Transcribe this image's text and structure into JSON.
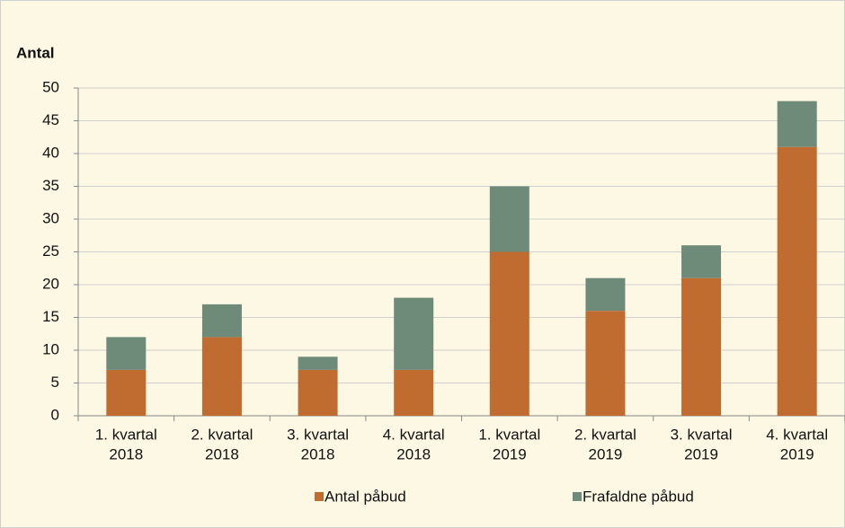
{
  "chart_data": {
    "type": "stacked_bar",
    "y_axis_label": "Antal",
    "categories": [
      [
        "1. kvartal",
        "2018"
      ],
      [
        "2. kvartal",
        "2018"
      ],
      [
        "3. kvartal",
        "2018"
      ],
      [
        "4. kvartal",
        "2018"
      ],
      [
        "1. kvartal",
        "2019"
      ],
      [
        "2. kvartal",
        "2019"
      ],
      [
        "3. kvartal",
        "2019"
      ],
      [
        "4. kvartal",
        "2019"
      ]
    ],
    "series": [
      {
        "name": "Antal påbud",
        "color": "#c06b30",
        "values": [
          7,
          12,
          7,
          7,
          25,
          16,
          21,
          41
        ]
      },
      {
        "name": "Frafaldne påbud",
        "color": "#6e8a78",
        "values": [
          5,
          5,
          2,
          11,
          10,
          5,
          5,
          7
        ]
      }
    ],
    "ylim": [
      0,
      50
    ],
    "yticks": [
      0,
      5,
      10,
      15,
      20,
      25,
      30,
      35,
      40,
      45,
      50
    ],
    "grid": true,
    "legend": "bottom"
  }
}
